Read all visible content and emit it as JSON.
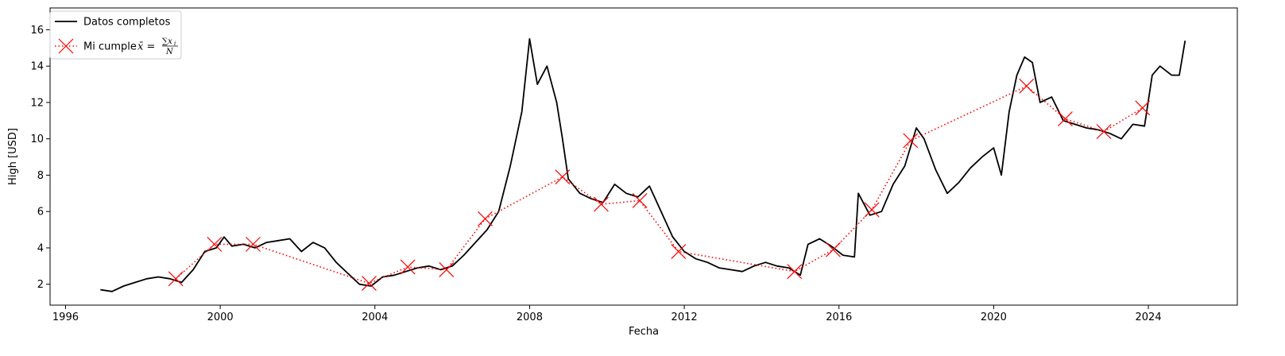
{
  "chart_data": {
    "type": "line",
    "xlabel": "Fecha",
    "ylabel": "High [USD]",
    "xlim": [
      1995.6,
      2026.3
    ],
    "ylim": [
      0.85,
      17.2
    ],
    "x_ticks": [
      1996,
      2000,
      2004,
      2008,
      2012,
      2016,
      2020,
      2024
    ],
    "y_ticks": [
      2,
      4,
      6,
      8,
      10,
      12,
      14,
      16
    ],
    "grid": false,
    "legend_position": "top-left",
    "series": [
      {
        "name": "Datos completos",
        "style": "solid-line",
        "color": "#000000",
        "x": [
          1996.9,
          1997.2,
          1997.5,
          1997.8,
          1998.1,
          1998.4,
          1998.7,
          1999.0,
          1999.3,
          1999.6,
          1999.9,
          2000.1,
          2000.3,
          2000.6,
          2000.9,
          2001.2,
          2001.5,
          2001.8,
          2002.1,
          2002.4,
          2002.7,
          2003.0,
          2003.3,
          2003.6,
          2003.9,
          2004.2,
          2004.5,
          2004.8,
          2005.1,
          2005.4,
          2005.7,
          2006.0,
          2006.3,
          2006.6,
          2006.9,
          2007.2,
          2007.5,
          2007.8,
          2008.0,
          2008.2,
          2008.45,
          2008.7,
          2008.85,
          2009.0,
          2009.3,
          2009.6,
          2009.9,
          2010.2,
          2010.5,
          2010.8,
          2011.1,
          2011.4,
          2011.7,
          2012.0,
          2012.3,
          2012.6,
          2012.9,
          2013.2,
          2013.5,
          2013.8,
          2014.1,
          2014.4,
          2014.7,
          2015.0,
          2015.2,
          2015.5,
          2015.8,
          2016.1,
          2016.4,
          2016.5,
          2016.8,
          2017.1,
          2017.4,
          2017.7,
          2018.0,
          2018.2,
          2018.5,
          2018.8,
          2019.1,
          2019.4,
          2019.7,
          2020.0,
          2020.2,
          2020.4,
          2020.6,
          2020.8,
          2021.0,
          2021.2,
          2021.5,
          2021.8,
          2022.1,
          2022.4,
          2022.7,
          2023.0,
          2023.3,
          2023.6,
          2023.9,
          2024.1,
          2024.3,
          2024.6,
          2024.8,
          2024.95
        ],
        "y": [
          1.7,
          1.6,
          1.9,
          2.1,
          2.3,
          2.4,
          2.3,
          2.1,
          2.8,
          3.8,
          4.0,
          4.6,
          4.1,
          4.2,
          4.0,
          4.3,
          4.4,
          4.5,
          3.8,
          4.3,
          4.0,
          3.2,
          2.6,
          2.0,
          1.9,
          2.4,
          2.5,
          2.7,
          2.9,
          3.0,
          2.8,
          3.0,
          3.6,
          4.3,
          5.0,
          6.0,
          8.5,
          11.5,
          15.5,
          13.0,
          14.0,
          12.0,
          10.0,
          7.8,
          7.0,
          6.7,
          6.5,
          7.5,
          7.0,
          6.8,
          7.4,
          6.0,
          4.6,
          3.8,
          3.4,
          3.2,
          2.9,
          2.8,
          2.7,
          3.0,
          3.2,
          3.0,
          2.9,
          2.5,
          4.2,
          4.5,
          4.1,
          3.6,
          3.5,
          7.0,
          5.8,
          6.0,
          7.5,
          8.5,
          10.6,
          10.0,
          8.3,
          7.0,
          7.6,
          8.4,
          9.0,
          9.5,
          8.0,
          11.5,
          13.5,
          14.5,
          14.2,
          12.0,
          12.3,
          11.0,
          10.8,
          10.6,
          10.5,
          10.3,
          10.0,
          10.8,
          10.7,
          13.5,
          14.0,
          13.5,
          13.5,
          15.4
        ]
      },
      {
        "name": "Mi cumple",
        "style": "dotted-line-x-markers",
        "color": "#ff0000",
        "x": [
          1998.85,
          1999.85,
          2000.85,
          2003.85,
          2004.85,
          2005.85,
          2006.85,
          2008.85,
          2009.85,
          2010.85,
          2011.85,
          2014.85,
          2015.85,
          2016.85,
          2017.85,
          2020.85,
          2021.85,
          2022.85,
          2023.85
        ],
        "y": [
          2.3,
          4.2,
          4.2,
          2.05,
          2.95,
          2.8,
          5.6,
          7.9,
          6.4,
          6.6,
          3.8,
          2.7,
          3.9,
          6.1,
          9.9,
          12.9,
          11.1,
          10.4,
          11.7
        ]
      }
    ]
  },
  "legend": {
    "entries": [
      {
        "label": "Datos completos"
      },
      {
        "label": "Mi cumple",
        "formula_lhs": "x̄ = ",
        "formula_num": "∑x",
        "formula_num_sub": "i",
        "formula_den": "N"
      }
    ]
  }
}
